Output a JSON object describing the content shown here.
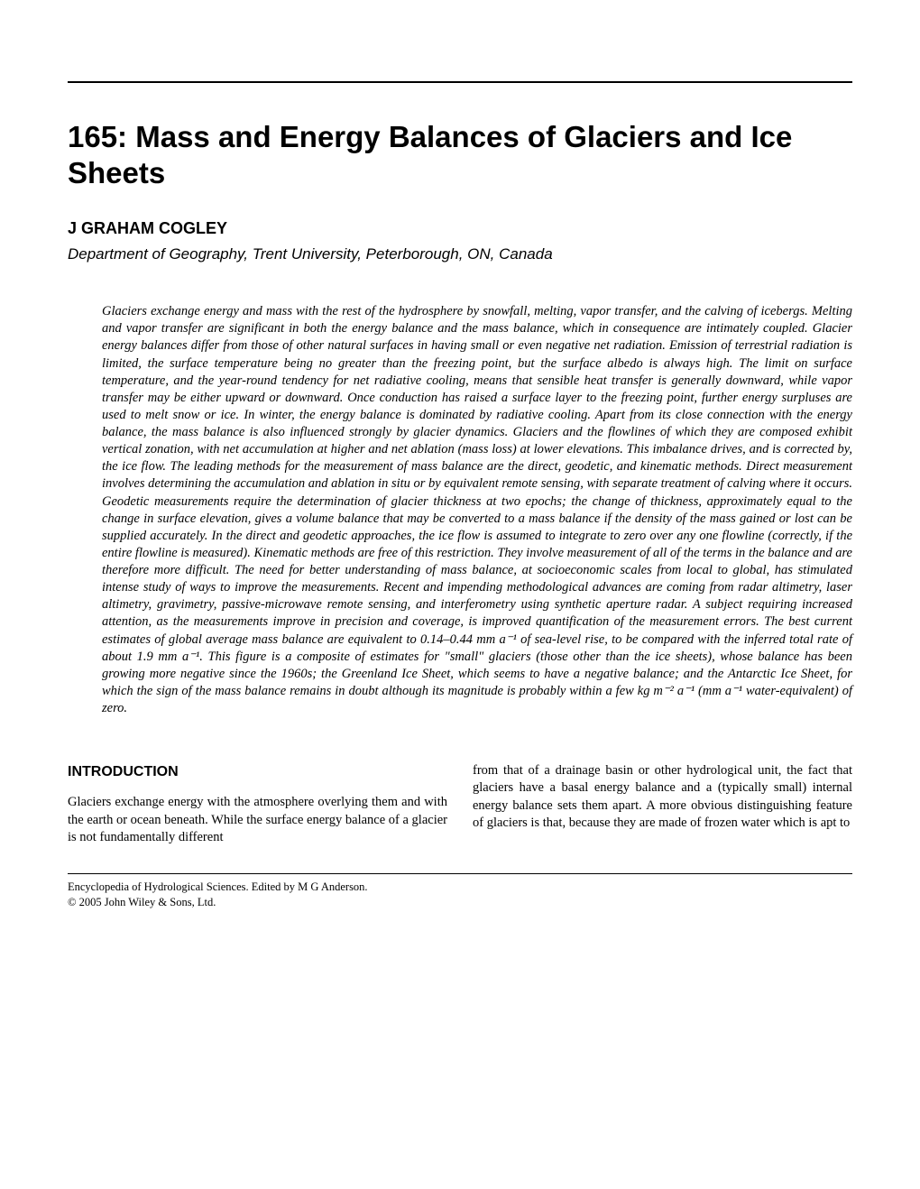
{
  "chapter": {
    "number": "165:",
    "title": "Mass and Energy Balances of Glaciers and Ice Sheets"
  },
  "author": "J GRAHAM COGLEY",
  "affiliation": "Department of Geography, Trent University, Peterborough, ON, Canada",
  "abstract": "Glaciers exchange energy and mass with the rest of the hydrosphere by snowfall, melting, vapor transfer, and the calving of icebergs. Melting and vapor transfer are significant in both the energy balance and the mass balance, which in consequence are intimately coupled. Glacier energy balances differ from those of other natural surfaces in having small or even negative net radiation. Emission of terrestrial radiation is limited, the surface temperature being no greater than the freezing point, but the surface albedo is always high. The limit on surface temperature, and the year-round tendency for net radiative cooling, means that sensible heat transfer is generally downward, while vapor transfer may be either upward or downward. Once conduction has raised a surface layer to the freezing point, further energy surpluses are used to melt snow or ice. In winter, the energy balance is dominated by radiative cooling. Apart from its close connection with the energy balance, the mass balance is also influenced strongly by glacier dynamics. Glaciers and the flowlines of which they are composed exhibit vertical zonation, with net accumulation at higher and net ablation (mass loss) at lower elevations. This imbalance drives, and is corrected by, the ice flow. The leading methods for the measurement of mass balance are the direct, geodetic, and kinematic methods. Direct measurement involves determining the accumulation and ablation in situ or by equivalent remote sensing, with separate treatment of calving where it occurs. Geodetic measurements require the determination of glacier thickness at two epochs; the change of thickness, approximately equal to the change in surface elevation, gives a volume balance that may be converted to a mass balance if the density of the mass gained or lost can be supplied accurately. In the direct and geodetic approaches, the ice flow is assumed to integrate to zero over any one flowline (correctly, if the entire flowline is measured). Kinematic methods are free of this restriction. They involve measurement of all of the terms in the balance and are therefore more difficult. The need for better understanding of mass balance, at socioeconomic scales from local to global, has stimulated intense study of ways to improve the measurements. Recent and impending methodological advances are coming from radar altimetry, laser altimetry, gravimetry, passive-microwave remote sensing, and interferometry using synthetic aperture radar. A subject requiring increased attention, as the measurements improve in precision and coverage, is improved quantification of the measurement errors. The best current estimates of global average mass balance are equivalent to 0.14–0.44 mm a⁻¹ of sea-level rise, to be compared with the inferred total rate of about 1.9 mm a⁻¹. This figure is a composite of estimates for \"small\" glaciers (those other than the ice sheets), whose balance has been growing more negative since the 1960s; the Greenland Ice Sheet, which seems to have a negative balance; and the Antarctic Ice Sheet, for which the sign of the mass balance remains in doubt although its magnitude is probably within a few kg m⁻² a⁻¹ (mm a⁻¹ water-equivalent) of zero.",
  "section_heading": "INTRODUCTION",
  "body": {
    "col1": "Glaciers exchange energy with the atmosphere overlying them and with the earth or ocean beneath. While the surface energy balance of a glacier is not fundamentally different",
    "col2": "from that of a drainage basin or other hydrological unit, the fact that glaciers have a basal energy balance and a (typically small) internal energy balance sets them apart. A more obvious distinguishing feature of glaciers is that, because they are made of frozen water which is apt to"
  },
  "footer": {
    "line1": "Encyclopedia of Hydrological Sciences. Edited by M G Anderson.",
    "line2": "© 2005 John Wiley & Sons, Ltd."
  }
}
